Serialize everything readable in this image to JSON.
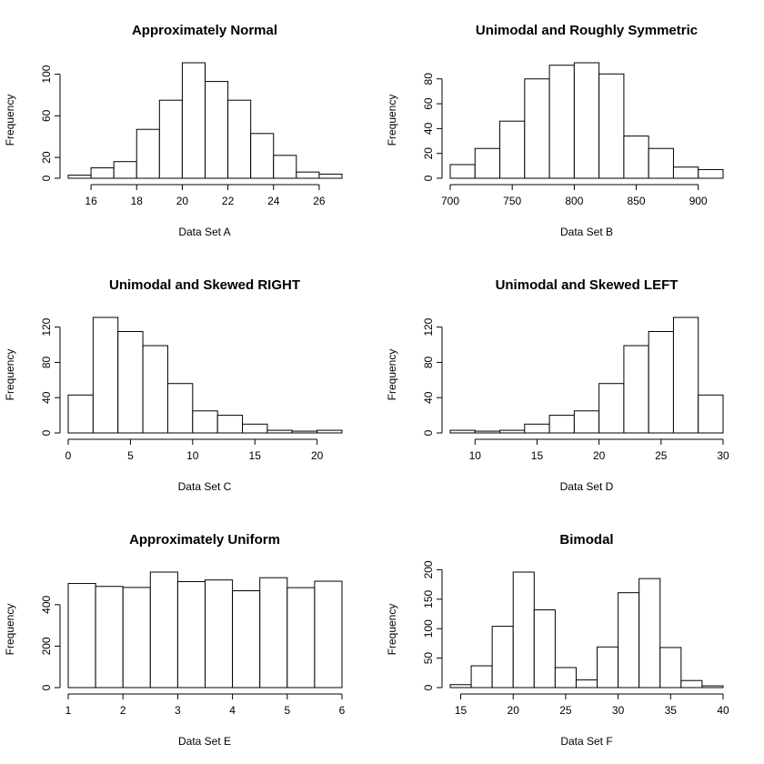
{
  "chart_data": [
    {
      "type": "bar",
      "title": "Approximately Normal",
      "xlabel": "Data Set A",
      "ylabel": "Frequency",
      "x_ticks": [
        16,
        18,
        20,
        22,
        24,
        26
      ],
      "y_ticks": [
        0,
        20,
        60,
        100
      ],
      "bins": [
        [
          15,
          16
        ],
        [
          16,
          17
        ],
        [
          17,
          18
        ],
        [
          18,
          19
        ],
        [
          19,
          20
        ],
        [
          20,
          21
        ],
        [
          21,
          22
        ],
        [
          22,
          23
        ],
        [
          23,
          24
        ],
        [
          24,
          25
        ],
        [
          25,
          26
        ],
        [
          26,
          27
        ]
      ],
      "values": [
        3,
        10,
        16,
        47,
        75,
        111,
        93,
        75,
        43,
        22,
        6,
        4
      ]
    },
    {
      "type": "bar",
      "title": "Unimodal and Roughly Symmetric",
      "xlabel": "Data Set B",
      "ylabel": "Frequency",
      "x_ticks": [
        700,
        750,
        800,
        850,
        900
      ],
      "y_ticks": [
        0,
        20,
        40,
        60,
        80
      ],
      "bins": [
        [
          700,
          720
        ],
        [
          720,
          740
        ],
        [
          740,
          760
        ],
        [
          760,
          780
        ],
        [
          780,
          800
        ],
        [
          800,
          820
        ],
        [
          820,
          840
        ],
        [
          840,
          860
        ],
        [
          860,
          880
        ],
        [
          880,
          900
        ],
        [
          900,
          920
        ]
      ],
      "values": [
        11,
        24,
        46,
        80,
        91,
        93,
        84,
        34,
        24,
        9,
        7
      ]
    },
    {
      "type": "bar",
      "title": "Unimodal and Skewed RIGHT",
      "xlabel": "Data Set C",
      "ylabel": "Frequency",
      "x_ticks": [
        0,
        5,
        10,
        15,
        20
      ],
      "y_ticks": [
        0,
        40,
        80,
        120
      ],
      "bins": [
        [
          0,
          2
        ],
        [
          2,
          4
        ],
        [
          4,
          6
        ],
        [
          6,
          8
        ],
        [
          8,
          10
        ],
        [
          10,
          12
        ],
        [
          12,
          14
        ],
        [
          14,
          16
        ],
        [
          16,
          18
        ],
        [
          18,
          20
        ],
        [
          20,
          22
        ]
      ],
      "values": [
        43,
        131,
        115,
        99,
        56,
        25,
        20,
        10,
        3,
        2,
        3
      ]
    },
    {
      "type": "bar",
      "title": "Unimodal and Skewed LEFT",
      "xlabel": "Data Set D",
      "ylabel": "Frequency",
      "x_ticks": [
        10,
        15,
        20,
        25,
        30
      ],
      "y_ticks": [
        0,
        40,
        80,
        120
      ],
      "bins": [
        [
          8,
          10
        ],
        [
          10,
          12
        ],
        [
          12,
          14
        ],
        [
          14,
          16
        ],
        [
          16,
          18
        ],
        [
          18,
          20
        ],
        [
          20,
          22
        ],
        [
          22,
          24
        ],
        [
          24,
          26
        ],
        [
          26,
          28
        ],
        [
          28,
          30
        ]
      ],
      "values": [
        3,
        2,
        3,
        10,
        20,
        25,
        56,
        99,
        115,
        131,
        43
      ]
    },
    {
      "type": "bar",
      "title": "Approximately Uniform",
      "xlabel": "Data Set E",
      "ylabel": "Frequency",
      "x_ticks": [
        1,
        2,
        3,
        4,
        5,
        6
      ],
      "y_ticks": [
        0,
        200,
        400
      ],
      "bins": [
        [
          1,
          1.5
        ],
        [
          1.5,
          2
        ],
        [
          2,
          2.5
        ],
        [
          2.5,
          3
        ],
        [
          3,
          3.5
        ],
        [
          3.5,
          4
        ],
        [
          4,
          4.5
        ],
        [
          4.5,
          5
        ],
        [
          5,
          5.5
        ],
        [
          5.5,
          6
        ]
      ],
      "values": [
        502,
        488,
        483,
        557,
        511,
        519,
        467,
        530,
        482,
        513
      ]
    },
    {
      "type": "bar",
      "title": "Bimodal",
      "xlabel": "Data Set F",
      "ylabel": "Frequency",
      "x_ticks": [
        15,
        20,
        25,
        30,
        35,
        40
      ],
      "y_ticks": [
        0,
        50,
        100,
        150,
        200
      ],
      "bins": [
        [
          14,
          16
        ],
        [
          16,
          18
        ],
        [
          18,
          20
        ],
        [
          20,
          22
        ],
        [
          22,
          24
        ],
        [
          24,
          26
        ],
        [
          26,
          28
        ],
        [
          28,
          30
        ],
        [
          30,
          32
        ],
        [
          32,
          34
        ],
        [
          34,
          36
        ],
        [
          36,
          38
        ],
        [
          38,
          40
        ]
      ],
      "values": [
        5,
        37,
        104,
        196,
        132,
        34,
        13,
        69,
        161,
        185,
        68,
        12,
        3
      ]
    }
  ]
}
